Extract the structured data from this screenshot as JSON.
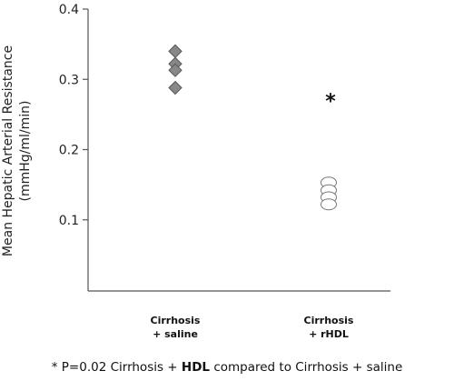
{
  "chart_data": {
    "type": "scatter",
    "ylabel_line1": "Mean Hepatic Arterial Resistance",
    "ylabel_line2": "(mmHg/ml/min)",
    "ylim": [
      0,
      0.4
    ],
    "yticks": [
      {
        "value": 0.1,
        "label": "0.1"
      },
      {
        "value": 0.2,
        "label": "0.2"
      },
      {
        "value": 0.3,
        "label": "0.3"
      },
      {
        "value": 0.4,
        "label": "0.4"
      }
    ],
    "categories": [
      {
        "line1": "Cirrhosis",
        "line2": "+ saline"
      },
      {
        "line1": "Cirrhosis",
        "line2": "+ rHDL"
      }
    ],
    "series": [
      {
        "category_index": 0,
        "marker": "diamond",
        "color": "#888888",
        "values": [
          0.34,
          0.322,
          0.313,
          0.288
        ]
      },
      {
        "category_index": 1,
        "marker": "circle",
        "color": "#ffffff",
        "values": [
          0.153,
          0.142,
          0.132,
          0.122
        ]
      }
    ],
    "annotations": [
      {
        "text": "*",
        "category_index": 1,
        "y": 0.275
      }
    ],
    "grid": false
  },
  "footnote": {
    "part1": "* P=0.02 Cirrhosis + ",
    "bold": "HDL",
    "part2": " compared to Cirrhosis + saline"
  }
}
